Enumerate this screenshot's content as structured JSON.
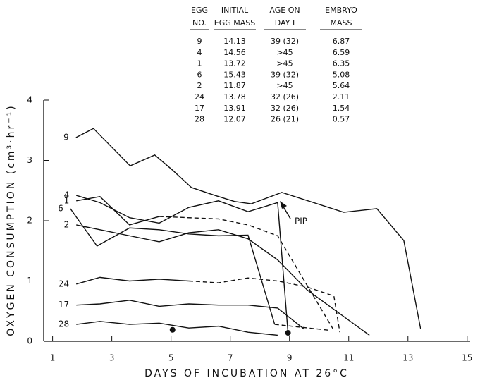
{
  "chart_data": {
    "type": "line",
    "xlabel": "DAYS OF INCUBATION AT 26°C",
    "ylabel": "OXYGEN CONSUMPTION (cm³·hr⁻¹)",
    "xlim": [
      0.7,
      15.1
    ],
    "ylim": [
      0,
      4
    ],
    "xticks": [
      1,
      3,
      5,
      7,
      9,
      11,
      13,
      15
    ],
    "yticks": [
      0,
      1,
      2,
      3,
      4
    ],
    "color": "#111111",
    "annotation": "PIP",
    "series": [
      {
        "name": "9",
        "dash": false,
        "x": [
          1.79,
          2.38,
          3.62,
          4.45,
          5.05,
          5.69,
          6.48,
          7.14,
          7.71,
          8.74,
          10.83,
          11.95,
          12.86,
          13.43
        ],
        "values": [
          3.38,
          3.53,
          2.91,
          3.09,
          2.84,
          2.55,
          2.42,
          2.32,
          2.28,
          2.47,
          2.14,
          2.2,
          1.67,
          0.2
        ]
      },
      {
        "name": "4",
        "dash": false,
        "x": [
          1.8,
          2.6,
          3.6,
          4.6,
          5.6,
          6.6,
          7.6,
          8.6,
          8.95
        ],
        "values": [
          2.42,
          2.3,
          2.05,
          1.96,
          2.22,
          2.33,
          2.15,
          2.3,
          0.14
        ]
      },
      {
        "name": "1",
        "dash": false,
        "x": [
          1.8,
          2.6,
          3.6,
          4.6
        ],
        "values": [
          2.33,
          2.4,
          1.93,
          2.07
        ]
      },
      {
        "dash": true,
        "x": [
          4.6,
          6.6,
          7.6,
          8.6,
          10.5
        ],
        "values": [
          2.07,
          2.03,
          1.93,
          1.75,
          0.18
        ]
      },
      {
        "name": "6",
        "dash": false,
        "x": [
          1.6,
          2.5,
          3.6,
          4.6,
          5.6,
          6.6,
          7.6,
          8.5
        ],
        "values": [
          2.2,
          1.58,
          1.88,
          1.85,
          1.78,
          1.75,
          1.76,
          0.28
        ]
      },
      {
        "dash": true,
        "x": [
          8.5,
          10.4
        ],
        "values": [
          0.28,
          0.18
        ]
      },
      {
        "name": "2",
        "dash": false,
        "x": [
          1.8,
          2.6,
          3.6,
          4.6,
          5.6,
          6.6,
          7.6,
          8.6,
          9.6,
          11.7
        ],
        "values": [
          1.93,
          1.85,
          1.75,
          1.65,
          1.8,
          1.85,
          1.7,
          1.35,
          0.85,
          0.1
        ]
      },
      {
        "name": "24",
        "dash": false,
        "x": [
          1.8,
          2.6,
          3.6,
          4.6,
          5.6
        ],
        "values": [
          0.95,
          1.06,
          1.0,
          1.03,
          1.0
        ]
      },
      {
        "dash": true,
        "x": [
          5.6,
          6.6,
          7.6,
          8.6,
          9.6,
          10.5,
          10.7
        ],
        "values": [
          1.0,
          0.97,
          1.05,
          1.0,
          0.9,
          0.75,
          0.15
        ]
      },
      {
        "name": "17",
        "dash": false,
        "x": [
          1.8,
          2.6,
          3.6,
          4.6,
          5.6,
          6.6,
          7.6,
          8.6,
          9.5
        ],
        "values": [
          0.6,
          0.62,
          0.68,
          0.58,
          0.62,
          0.6,
          0.6,
          0.55,
          0.2
        ]
      },
      {
        "name": "28",
        "dash": false,
        "x": [
          1.8,
          2.6,
          3.6,
          4.6,
          5.6,
          6.6,
          7.6,
          8.6
        ],
        "values": [
          0.28,
          0.33,
          0.28,
          0.3,
          0.22,
          0.25,
          0.15,
          0.1
        ]
      }
    ],
    "markers": {
      "x": [
        5.05,
        8.95
      ],
      "values": [
        0.19,
        0.14
      ]
    },
    "table": {
      "columns": [
        [
          "EGG",
          "NO."
        ],
        [
          "INITIAL",
          "EGG MASS"
        ],
        [
          "AGE ON",
          "DAY I"
        ],
        [
          "EMBRYO",
          "MASS"
        ]
      ],
      "rows": [
        [
          "9",
          "14.13",
          "39 (32)",
          "6.87"
        ],
        [
          "4",
          "14.56",
          ">45",
          "6.59"
        ],
        [
          "1",
          "13.72",
          ">45",
          "6.35"
        ],
        [
          "6",
          "15.43",
          "39 (32)",
          "5.08"
        ],
        [
          "2",
          "11.87",
          ">45",
          "5.64"
        ],
        [
          "24",
          "13.78",
          "32 (26)",
          "2.11"
        ],
        [
          "17",
          "13.91",
          "32 (26)",
          "1.54"
        ],
        [
          "28",
          "12.07",
          "26 (21)",
          "0.57"
        ]
      ]
    }
  }
}
